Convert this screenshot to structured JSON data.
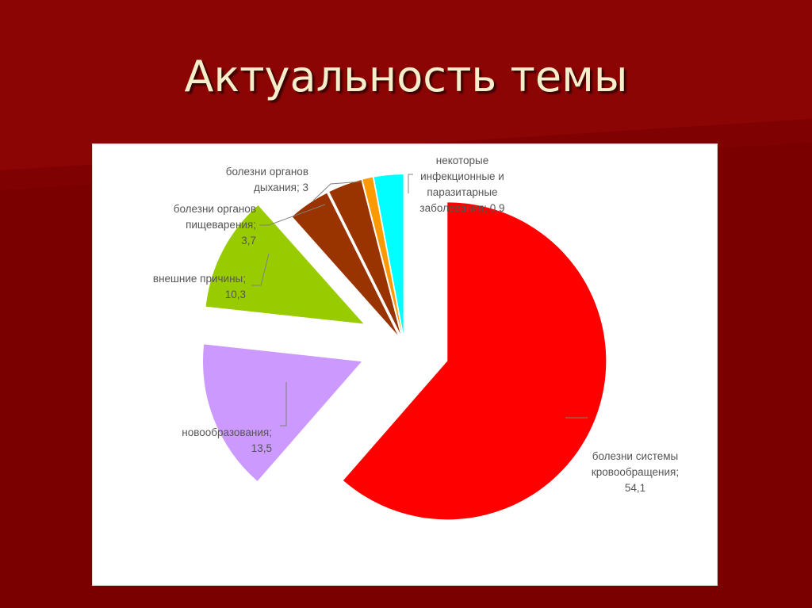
{
  "slide": {
    "title": "Актуальность темы"
  },
  "colors": {
    "background": "#7a0000",
    "panel": "#ffffff",
    "title_text": "#f5eecb"
  },
  "chart_data": {
    "type": "pie",
    "exploded": true,
    "title": "",
    "slices": [
      {
        "label_lines": [
          "болезни системы",
          "кровообращения;",
          "54,1"
        ],
        "value": 54.1,
        "color": "#ff0000"
      },
      {
        "label_lines": [
          "новообразования;",
          "13,5"
        ],
        "value": 13.5,
        "color": "#cc99ff"
      },
      {
        "label_lines": [
          "внешние причины;",
          "10,3"
        ],
        "value": 10.3,
        "color": "#99cc00"
      },
      {
        "label_lines": [
          "болезни органов",
          "пищеварения;",
          "3,7"
        ],
        "value": 3.7,
        "color": "#993300"
      },
      {
        "label_lines": [
          "болезни органов",
          "дыхания; 3"
        ],
        "value": 3.0,
        "color": "#993300"
      },
      {
        "label_lines": [
          "некоторые",
          "инфекционные и",
          "паразитарные",
          "заболевания; 0,9"
        ],
        "value": 0.9,
        "color": "#ff9900"
      },
      {
        "label_lines": [],
        "value": 2.6,
        "color": "#00ffff"
      }
    ]
  }
}
